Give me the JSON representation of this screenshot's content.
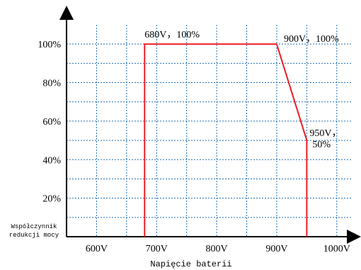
{
  "chart_data": {
    "type": "line",
    "title": "",
    "xlabel": "Napięcie baterii",
    "ylabel_lines": [
      "Współczynnik",
      "redukcji mocy"
    ],
    "x_ticks": [
      600,
      700,
      800,
      900,
      1000
    ],
    "x_tick_labels": [
      "600V",
      "700V",
      "800V",
      "900V",
      "1000V"
    ],
    "y_ticks": [
      20,
      40,
      60,
      80,
      100
    ],
    "y_tick_labels": [
      "20%",
      "40%",
      "60%",
      "80%",
      "100%"
    ],
    "xlim": [
      550,
      1025
    ],
    "ylim": [
      0,
      110
    ],
    "grid": true,
    "series": [
      {
        "x": [
          680,
          680,
          900,
          950,
          950
        ],
        "y": [
          0,
          100,
          100,
          50,
          0
        ],
        "color": "#ee1c24"
      }
    ],
    "annotations": [
      {
        "lines": [
          "680V，100%"
        ],
        "x": 680,
        "y": 100
      },
      {
        "lines": [
          "900V，100%"
        ],
        "x": 900,
        "y": 100
      },
      {
        "lines": [
          "950V，",
          "50%"
        ],
        "x": 950,
        "y": 50
      }
    ],
    "grid_color": "#1f6fb5",
    "axis_color": "#000000"
  }
}
